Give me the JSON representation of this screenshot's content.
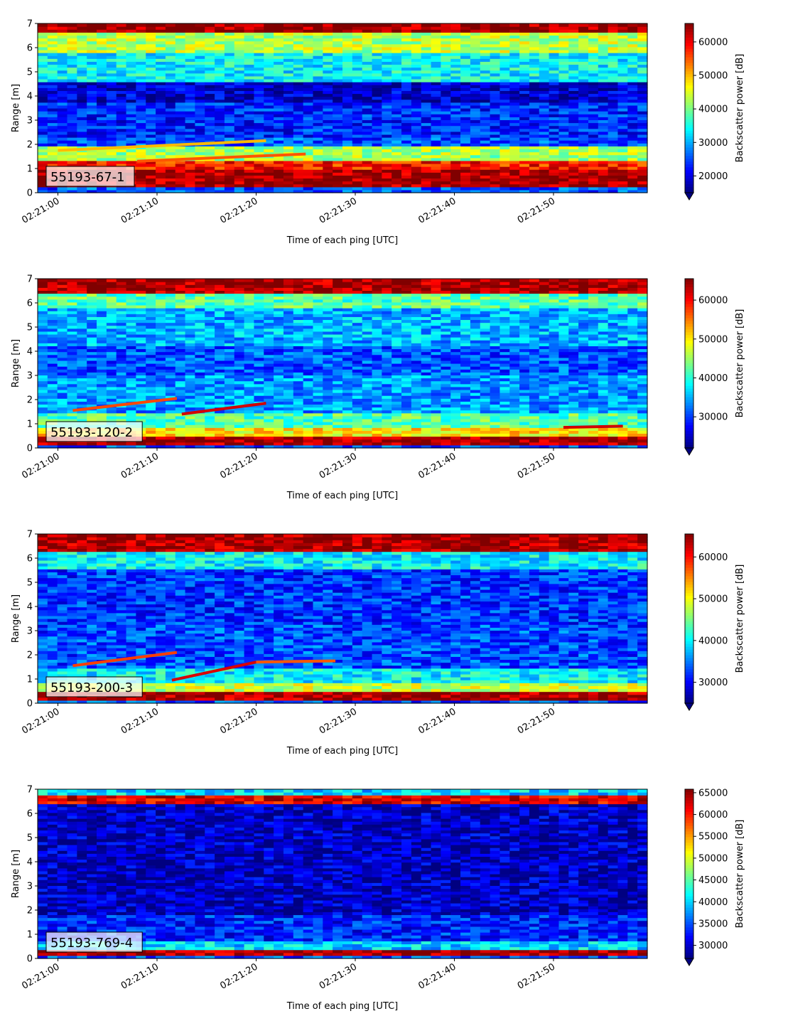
{
  "chart_data": [
    {
      "type": "heatmap",
      "label_box": "55193-67-1",
      "xlabel": "Time of each ping [UTC]",
      "ylabel": "Range [m]",
      "x_ticks": [
        "02:21:00",
        "02:21:10",
        "02:21:20",
        "02:21:30",
        "02:21:40",
        "02:21:50"
      ],
      "y_ticks": [
        "0",
        "1",
        "2",
        "3",
        "4",
        "5",
        "6",
        "7"
      ],
      "ylim": [
        0,
        7
      ],
      "colorbar": {
        "label": "Backscatter power [dB]",
        "ticks": [
          "20000",
          "30000",
          "40000",
          "50000",
          "60000"
        ],
        "range": [
          15000,
          65500
        ],
        "colormap": "jet",
        "extend": "min"
      },
      "bands": [
        {
          "y0": 0.2,
          "y1": 1.0,
          "value": 64000
        },
        {
          "y0": 1.0,
          "y1": 1.3,
          "value": 58000
        },
        {
          "y0": 1.3,
          "y1": 1.9,
          "value": 42000
        },
        {
          "y0": 2.3,
          "y1": 3.8,
          "value": 23000
        },
        {
          "y0": 3.8,
          "y1": 4.6,
          "value": 19000
        },
        {
          "y0": 4.6,
          "y1": 5.8,
          "value": 34000
        },
        {
          "y0": 5.8,
          "y1": 6.6,
          "value": 43000
        },
        {
          "y0": 6.6,
          "y1": 7.0,
          "value": 64000
        }
      ],
      "streaks": [
        {
          "x0": 0,
          "y0": 1.75,
          "x1": 21,
          "y1": 2.15,
          "value": 50000
        },
        {
          "x0": 8,
          "y0": 1.3,
          "x1": 25,
          "y1": 1.6,
          "value": 55000
        }
      ]
    },
    {
      "type": "heatmap",
      "label_box": "55193-120-2",
      "xlabel": "Time of each ping [UTC]",
      "ylabel": "Range [m]",
      "x_ticks": [
        "02:21:00",
        "02:21:10",
        "02:21:20",
        "02:21:30",
        "02:21:40",
        "02:21:50"
      ],
      "y_ticks": [
        "0",
        "1",
        "2",
        "3",
        "4",
        "5",
        "6",
        "7"
      ],
      "ylim": [
        0,
        7
      ],
      "colorbar": {
        "label": "Backscatter power [dB]",
        "ticks": [
          "30000",
          "40000",
          "50000",
          "60000"
        ],
        "range": [
          22000,
          65500
        ],
        "colormap": "jet",
        "extend": "min"
      },
      "bands": [
        {
          "y0": 0.1,
          "y1": 0.5,
          "value": 64000
        },
        {
          "y0": 0.5,
          "y1": 0.8,
          "value": 50000
        },
        {
          "y0": 0.8,
          "y1": 1.5,
          "value": 42000
        },
        {
          "y0": 1.5,
          "y1": 3.0,
          "value": 34000
        },
        {
          "y0": 3.0,
          "y1": 4.2,
          "value": 31000
        },
        {
          "y0": 4.2,
          "y1": 5.8,
          "value": 35000
        },
        {
          "y0": 5.8,
          "y1": 6.4,
          "value": 42000
        },
        {
          "y0": 6.4,
          "y1": 7.0,
          "value": 64000
        }
      ],
      "streaks": [
        {
          "x0": 1.5,
          "y0": 1.55,
          "x1": 12,
          "y1": 2.05,
          "value": 57000
        },
        {
          "x0": 12.5,
          "y0": 1.4,
          "x1": 21,
          "y1": 1.85,
          "value": 62000
        },
        {
          "x0": 51,
          "y0": 0.85,
          "x1": 57,
          "y1": 0.9,
          "value": 62000
        }
      ]
    },
    {
      "type": "heatmap",
      "label_box": "55193-200-3",
      "xlabel": "Time of each ping [UTC]",
      "ylabel": "Range [m]",
      "x_ticks": [
        "02:21:00",
        "02:21:10",
        "02:21:20",
        "02:21:30",
        "02:21:40",
        "02:21:50"
      ],
      "y_ticks": [
        "0",
        "1",
        "2",
        "3",
        "4",
        "5",
        "6",
        "7"
      ],
      "ylim": [
        0,
        7
      ],
      "colorbar": {
        "label": "Backscatter power [dB]",
        "ticks": [
          "30000",
          "40000",
          "50000",
          "60000"
        ],
        "range": [
          25000,
          65500
        ],
        "colormap": "jet",
        "extend": "min"
      },
      "bands": [
        {
          "y0": 0.1,
          "y1": 0.5,
          "value": 64000
        },
        {
          "y0": 0.5,
          "y1": 0.8,
          "value": 48000
        },
        {
          "y0": 0.8,
          "y1": 1.4,
          "value": 40000
        },
        {
          "y0": 1.4,
          "y1": 3.2,
          "value": 33000
        },
        {
          "y0": 3.2,
          "y1": 5.6,
          "value": 32000
        },
        {
          "y0": 5.6,
          "y1": 6.3,
          "value": 40000
        },
        {
          "y0": 6.3,
          "y1": 7.0,
          "value": 64000
        }
      ],
      "streaks": [
        {
          "x0": 1.5,
          "y0": 1.55,
          "x1": 12,
          "y1": 2.1,
          "value": 58000
        },
        {
          "x0": 11.5,
          "y0": 0.95,
          "x1": 20,
          "y1": 1.7,
          "value": 62000
        },
        {
          "x0": 20,
          "y0": 1.7,
          "x1": 28,
          "y1": 1.75,
          "value": 57000
        }
      ]
    },
    {
      "type": "heatmap",
      "label_box": "55193-769-4",
      "xlabel": "Time of each ping [UTC]",
      "ylabel": "Range [m]",
      "x_ticks": [
        "02:21:00",
        "02:21:10",
        "02:21:20",
        "02:21:30",
        "02:21:40",
        "02:21:50"
      ],
      "y_ticks": [
        "0",
        "1",
        "2",
        "3",
        "4",
        "5",
        "6",
        "7"
      ],
      "ylim": [
        0,
        7
      ],
      "colorbar": {
        "label": "Backscatter power [dB]",
        "ticks": [
          "30000",
          "35000",
          "40000",
          "45000",
          "50000",
          "55000",
          "60000",
          "65000"
        ],
        "range": [
          27000,
          65800
        ],
        "colormap": "jet",
        "extend": "min"
      },
      "bands": [
        {
          "y0": 0.15,
          "y1": 0.35,
          "value": 64000
        },
        {
          "y0": 0.35,
          "y1": 0.7,
          "value": 40000
        },
        {
          "y0": 0.7,
          "y1": 1.8,
          "value": 33000
        },
        {
          "y0": 1.8,
          "y1": 6.4,
          "value": 29500
        },
        {
          "y0": 6.4,
          "y1": 6.8,
          "value": 62000
        },
        {
          "y0": 6.8,
          "y1": 7.0,
          "value": 40000
        }
      ],
      "streaks": []
    }
  ]
}
